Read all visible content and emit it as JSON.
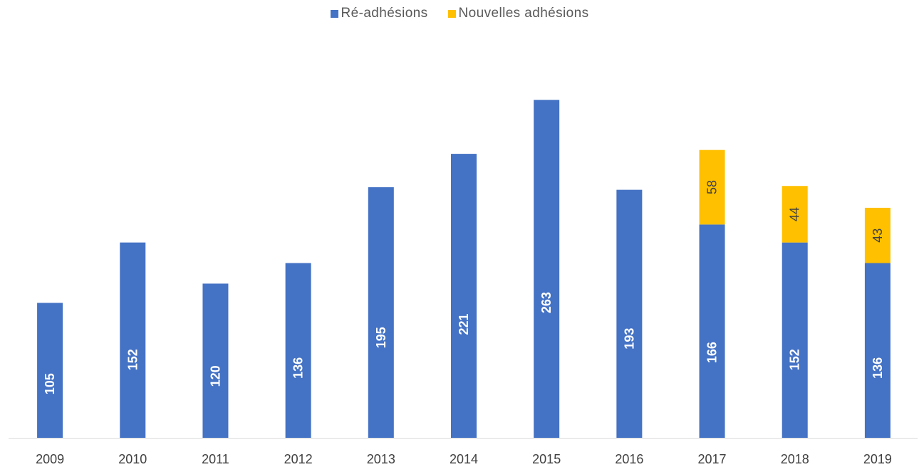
{
  "chart_data": {
    "type": "bar",
    "stacked": true,
    "title": "",
    "xlabel": "",
    "ylabel": "",
    "categories": [
      "2009",
      "2010",
      "2011",
      "2012",
      "2013",
      "2014",
      "2015",
      "2016",
      "2017",
      "2018",
      "2019"
    ],
    "series": [
      {
        "name": "Ré-adhésions",
        "color": "#4472C4",
        "values": [
          105,
          152,
          120,
          136,
          195,
          221,
          263,
          193,
          166,
          152,
          136
        ],
        "data_labels": [
          "105",
          "152",
          "120",
          "136",
          "195",
          "221",
          "263",
          "193",
          "166",
          "152",
          "136"
        ]
      },
      {
        "name": "Nouvelles adhésions",
        "color": "#FFC000",
        "values": [
          0,
          0,
          0,
          0,
          0,
          0,
          0,
          0,
          58,
          44,
          43
        ],
        "data_labels": [
          "",
          "",
          "",
          "",
          "",
          "",
          "",
          "",
          "58",
          "44",
          "43"
        ]
      }
    ],
    "ylim": [
      0,
      290
    ],
    "grid": false,
    "y_axis_visible": false,
    "legend_position": "top-center",
    "data_label_orientation": "vertical"
  }
}
